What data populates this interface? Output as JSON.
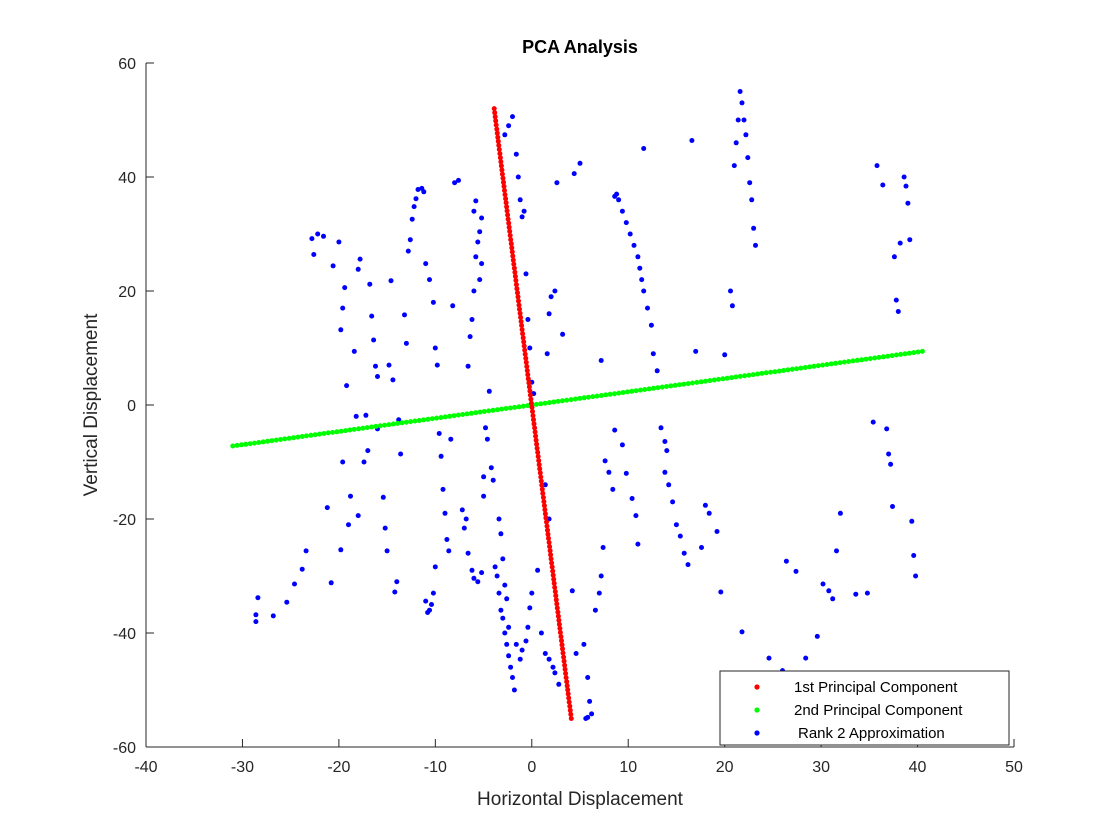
{
  "chart_data": {
    "type": "scatter",
    "title": "PCA Analysis",
    "xlabel": "Horizontal Displacement",
    "ylabel": "Vertical Displacement",
    "xlim": [
      -40,
      50
    ],
    "ylim": [
      -60,
      60
    ],
    "xticks": [
      -40,
      -30,
      -20,
      -10,
      0,
      10,
      20,
      30,
      40,
      50
    ],
    "yticks": [
      -60,
      -40,
      -20,
      0,
      20,
      40,
      60
    ],
    "grid": false,
    "legend_position": "bottom-right",
    "series": [
      {
        "name": "1st Principal Component",
        "color": "#ff0000",
        "line_from": [
          -3.9,
          52
        ],
        "line_to": [
          4.1,
          -55
        ],
        "point_count": 150
      },
      {
        "name": "2nd Principal Component",
        "color": "#00ff00",
        "line_from": [
          -31,
          -7.2
        ],
        "line_to": [
          40.5,
          9.4
        ],
        "point_count": 160
      },
      {
        "name": "Rank 2 Approximation",
        "color": "#0000ff",
        "points": [
          [
            -28.6,
            -38
          ],
          [
            -28.6,
            -36.8
          ],
          [
            -28.4,
            -33.8
          ],
          [
            -26.8,
            -37
          ],
          [
            -25.4,
            -34.6
          ],
          [
            -24.6,
            -31.4
          ],
          [
            -23.8,
            -28.8
          ],
          [
            -23.4,
            -25.6
          ],
          [
            -22.8,
            29.2
          ],
          [
            -22.6,
            26.4
          ],
          [
            -22.2,
            30
          ],
          [
            -21.6,
            29.6
          ],
          [
            -21.2,
            -18
          ],
          [
            -20.8,
            -31.2
          ],
          [
            -20.6,
            24.4
          ],
          [
            -20,
            28.6
          ],
          [
            -19.8,
            -25.4
          ],
          [
            -19.6,
            -10
          ],
          [
            -19.8,
            13.2
          ],
          [
            -19.6,
            17
          ],
          [
            -19.4,
            20.6
          ],
          [
            -19.2,
            3.4
          ],
          [
            -19,
            -21
          ],
          [
            -18.8,
            -16
          ],
          [
            -18.4,
            9.4
          ],
          [
            -18.2,
            -2
          ],
          [
            -18,
            -19.4
          ],
          [
            -18,
            23.8
          ],
          [
            -17.8,
            25.6
          ],
          [
            -17.4,
            -10
          ],
          [
            -17.2,
            -1.8
          ],
          [
            -17,
            -8
          ],
          [
            -16.8,
            21.2
          ],
          [
            -16.6,
            15.6
          ],
          [
            -16.4,
            11.4
          ],
          [
            -16.2,
            6.8
          ],
          [
            -16,
            5
          ],
          [
            -16,
            -4.2
          ],
          [
            -15.4,
            -16.2
          ],
          [
            -15.2,
            -21.6
          ],
          [
            -15,
            -25.6
          ],
          [
            -14.8,
            7
          ],
          [
            -14.6,
            21.8
          ],
          [
            -14.4,
            4.4
          ],
          [
            -14.2,
            -32.8
          ],
          [
            -14,
            -31
          ],
          [
            -13.8,
            -2.6
          ],
          [
            -13.6,
            -8.6
          ],
          [
            -13.2,
            15.8
          ],
          [
            -13,
            10.8
          ],
          [
            -12.8,
            27
          ],
          [
            -12.6,
            29
          ],
          [
            -12.4,
            32.6
          ],
          [
            -12.2,
            34.8
          ],
          [
            -12,
            36.2
          ],
          [
            -11.8,
            37.8
          ],
          [
            -11.4,
            38
          ],
          [
            -11.2,
            37.4
          ],
          [
            -11,
            -34.4
          ],
          [
            -10.8,
            -36.4
          ],
          [
            -10.6,
            -36
          ],
          [
            -10.4,
            -35
          ],
          [
            -10.2,
            -33
          ],
          [
            -10,
            -28.4
          ],
          [
            -11,
            24.8
          ],
          [
            -10.6,
            22
          ],
          [
            -10.2,
            18
          ],
          [
            -10,
            10
          ],
          [
            -9.8,
            7
          ],
          [
            -9.6,
            -5
          ],
          [
            -9.4,
            -9
          ],
          [
            -9.2,
            -14.8
          ],
          [
            -9,
            -19
          ],
          [
            -8.8,
            -23.6
          ],
          [
            -8.6,
            -25.6
          ],
          [
            -8.4,
            -6
          ],
          [
            -8.2,
            17.4
          ],
          [
            -8,
            39
          ],
          [
            -7.6,
            39.4
          ],
          [
            -7.2,
            -18.4
          ],
          [
            -7,
            -21.6
          ],
          [
            -6.8,
            -20
          ],
          [
            -6.6,
            -26
          ],
          [
            -6.2,
            -29
          ],
          [
            -6,
            -30.4
          ],
          [
            -5.6,
            -31
          ],
          [
            -5.2,
            -29.4
          ],
          [
            -5,
            -12.6
          ],
          [
            -6.6,
            6.8
          ],
          [
            -6.4,
            12
          ],
          [
            -6.2,
            15
          ],
          [
            -6,
            20
          ],
          [
            -5.8,
            26
          ],
          [
            -5.6,
            28.6
          ],
          [
            -5.4,
            30.4
          ],
          [
            -5.2,
            32.8
          ],
          [
            -6,
            34
          ],
          [
            -5.8,
            35.8
          ],
          [
            -5.4,
            22
          ],
          [
            -5.2,
            24.8
          ],
          [
            -5,
            -16
          ],
          [
            -4.8,
            -4
          ],
          [
            -4.6,
            -6
          ],
          [
            -4.4,
            2.4
          ],
          [
            -4.2,
            -11
          ],
          [
            -4,
            -13.2
          ],
          [
            -3.8,
            -28.4
          ],
          [
            -3.6,
            -30
          ],
          [
            -3.4,
            -33
          ],
          [
            -3.2,
            -36
          ],
          [
            -3,
            -37.4
          ],
          [
            -2.8,
            -40
          ],
          [
            -2.6,
            -42
          ],
          [
            -2.4,
            -44
          ],
          [
            -2.2,
            -46
          ],
          [
            -2,
            -47.8
          ],
          [
            -1.8,
            -50
          ],
          [
            -2.8,
            47.4
          ],
          [
            -2.4,
            49
          ],
          [
            -2,
            50.6
          ],
          [
            -1.6,
            44
          ],
          [
            -1.4,
            40
          ],
          [
            -1.2,
            36
          ],
          [
            -1,
            33
          ],
          [
            -0.8,
            34
          ],
          [
            -0.6,
            23
          ],
          [
            -0.4,
            15
          ],
          [
            -0.2,
            10
          ],
          [
            0,
            4
          ],
          [
            0.2,
            2
          ],
          [
            -3.4,
            -20
          ],
          [
            -3.2,
            -22.6
          ],
          [
            -3,
            -27
          ],
          [
            -2.8,
            -31.6
          ],
          [
            -2.6,
            -34
          ],
          [
            -2.4,
            -39
          ],
          [
            -1.6,
            -42
          ],
          [
            -1.2,
            -44.6
          ],
          [
            -1,
            -43
          ],
          [
            -0.6,
            -41.4
          ],
          [
            -0.4,
            -39
          ],
          [
            -0.2,
            -35.6
          ],
          [
            0,
            -33
          ],
          [
            0.6,
            -29
          ],
          [
            1,
            -40
          ],
          [
            1.4,
            -43.6
          ],
          [
            1.8,
            -44.6
          ],
          [
            2.2,
            -46
          ],
          [
            2.4,
            -47
          ],
          [
            2.8,
            -49
          ],
          [
            1.8,
            -20
          ],
          [
            1.4,
            -14
          ],
          [
            1.6,
            9
          ],
          [
            1.8,
            16
          ],
          [
            2,
            19
          ],
          [
            2.4,
            20
          ],
          [
            2.6,
            39
          ],
          [
            3.2,
            12.4
          ],
          [
            4.2,
            -32.6
          ],
          [
            4.6,
            -43.6
          ],
          [
            4.4,
            40.6
          ],
          [
            5,
            42.4
          ],
          [
            5.4,
            -42
          ],
          [
            5.8,
            -47.8
          ],
          [
            6,
            -52
          ],
          [
            6.2,
            -54.2
          ],
          [
            5.6,
            -55
          ],
          [
            5.8,
            -54.8
          ],
          [
            6.6,
            -36
          ],
          [
            7,
            -33
          ],
          [
            7.2,
            -30
          ],
          [
            7.4,
            -25
          ],
          [
            7.2,
            7.8
          ],
          [
            7.6,
            -9.8
          ],
          [
            8,
            -11.8
          ],
          [
            8.4,
            -14.8
          ],
          [
            8.6,
            36.6
          ],
          [
            8.8,
            37
          ],
          [
            9,
            36
          ],
          [
            9.4,
            34
          ],
          [
            9.8,
            32
          ],
          [
            10.2,
            30
          ],
          [
            10.6,
            28
          ],
          [
            11,
            26
          ],
          [
            11.2,
            24
          ],
          [
            11.4,
            22
          ],
          [
            11.6,
            20
          ],
          [
            12,
            17
          ],
          [
            12.4,
            14
          ],
          [
            12.6,
            9
          ],
          [
            13,
            6
          ],
          [
            13.4,
            -4
          ],
          [
            13.8,
            -6.4
          ],
          [
            14,
            -8
          ],
          [
            14.2,
            -14
          ],
          [
            14.6,
            -17
          ],
          [
            15,
            -21
          ],
          [
            15.4,
            -23
          ],
          [
            15.8,
            -26
          ],
          [
            16.2,
            -28
          ],
          [
            8.6,
            -4.4
          ],
          [
            9.4,
            -7
          ],
          [
            9.8,
            -12
          ],
          [
            10.4,
            -16.4
          ],
          [
            10.8,
            -19.4
          ],
          [
            11,
            -24.4
          ],
          [
            11.6,
            45
          ],
          [
            13.8,
            -11.8
          ],
          [
            16.6,
            46.4
          ],
          [
            17,
            9.4
          ],
          [
            17.6,
            -25
          ],
          [
            18,
            -17.6
          ],
          [
            18.4,
            -19
          ],
          [
            19.2,
            -22.2
          ],
          [
            19.6,
            -32.8
          ],
          [
            20,
            8.8
          ],
          [
            20.6,
            20
          ],
          [
            20.8,
            17.4
          ],
          [
            21,
            42
          ],
          [
            21.2,
            46
          ],
          [
            21.4,
            50
          ],
          [
            21.6,
            55
          ],
          [
            21.8,
            53
          ],
          [
            22,
            50
          ],
          [
            22.2,
            47.4
          ],
          [
            22.4,
            43.4
          ],
          [
            22.6,
            39
          ],
          [
            22.8,
            36
          ],
          [
            23,
            31
          ],
          [
            23.2,
            28
          ],
          [
            21.8,
            -39.8
          ],
          [
            24.6,
            -44.4
          ],
          [
            26,
            -46.6
          ],
          [
            26.4,
            -27.4
          ],
          [
            27.4,
            -29.2
          ],
          [
            28.4,
            -44.4
          ],
          [
            29.6,
            -40.6
          ],
          [
            30.2,
            -31.4
          ],
          [
            30.8,
            -32.6
          ],
          [
            31.2,
            -34
          ],
          [
            31.6,
            -25.6
          ],
          [
            32,
            -19
          ],
          [
            33.6,
            -33.2
          ],
          [
            34.8,
            -33
          ],
          [
            35.4,
            -3
          ],
          [
            35.8,
            42
          ],
          [
            36.4,
            38.6
          ],
          [
            36.8,
            -4.2
          ],
          [
            37,
            -8.6
          ],
          [
            37.2,
            -10.4
          ],
          [
            37.4,
            -17.8
          ],
          [
            37.6,
            26
          ],
          [
            37.8,
            18.4
          ],
          [
            38,
            16.4
          ],
          [
            38.2,
            28.4
          ],
          [
            38.6,
            40
          ],
          [
            38.8,
            38.4
          ],
          [
            39,
            35.4
          ],
          [
            39.2,
            29
          ],
          [
            39.4,
            -20.4
          ],
          [
            39.6,
            -26.4
          ],
          [
            39.8,
            -30
          ]
        ]
      }
    ]
  }
}
